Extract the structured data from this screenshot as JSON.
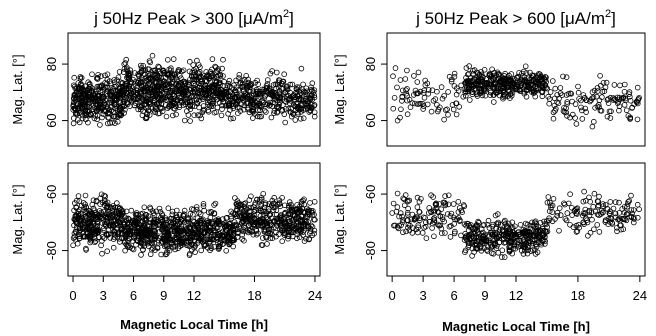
{
  "chart_data": [
    {
      "type": "scatter",
      "title_prefix": "j 50Hz Peak > 300 [",
      "title_unit_mu": "μ",
      "title_unit_rest": "A/m",
      "title_exp": "2",
      "title_suffix": "]",
      "xlabel": "Magnetic Local Time [h]",
      "xlim": [
        -0.5,
        24.5
      ],
      "xticks": [
        0,
        3,
        6,
        9,
        12,
        18,
        24
      ],
      "xtick_labels": [
        "0",
        "3",
        "6",
        "9",
        "12",
        "18",
        "24"
      ],
      "panels": [
        {
          "ylabel": "Mag. Lat. [°]",
          "ylim": [
            51,
            91
          ],
          "yticks": [
            60,
            80
          ],
          "ytick_labels": [
            "60",
            "80"
          ],
          "density": [
            {
              "x": [
                0,
                5
              ],
              "y": [
                56,
                79
              ],
              "w": 1.0
            },
            {
              "x": [
                5,
                15
              ],
              "y": [
                58,
                84
              ],
              "w": 2.2
            },
            {
              "x": [
                15,
                24
              ],
              "y": [
                57,
                79
              ],
              "w": 1.2
            }
          ],
          "n_points": 1400
        },
        {
          "ylabel": "Mag. Lat. [°]",
          "ylim": [
            -89,
            -49
          ],
          "yticks": [
            -80,
            -60
          ],
          "ytick_labels": [
            "-80",
            "-60"
          ],
          "density": [
            {
              "x": [
                0,
                5
              ],
              "y": [
                -82,
                -58
              ],
              "w": 1.0
            },
            {
              "x": [
                5,
                16
              ],
              "y": [
                -84,
                -62
              ],
              "w": 2.2
            },
            {
              "x": [
                16,
                24
              ],
              "y": [
                -80,
                -58
              ],
              "w": 1.3
            }
          ],
          "n_points": 1400
        }
      ]
    },
    {
      "type": "scatter",
      "title_prefix": "j 50Hz Peak > 600 [",
      "title_unit_mu": "μ",
      "title_unit_rest": "A/m",
      "title_exp": "2",
      "title_suffix": "]",
      "xlabel": "Magnetic Local Time [h]",
      "xlim": [
        -0.5,
        24.5
      ],
      "xticks": [
        0,
        3,
        6,
        9,
        12,
        18,
        24
      ],
      "xtick_labels": [
        "0",
        "3",
        "6",
        "9",
        "12",
        "18",
        "24"
      ],
      "panels": [
        {
          "ylabel": "Mag. Lat. [°]",
          "ylim": [
            51,
            91
          ],
          "yticks": [
            60,
            80
          ],
          "ytick_labels": [
            "60",
            "80"
          ],
          "density": [
            {
              "x": [
                0,
                7
              ],
              "y": [
                55,
                82
              ],
              "w": 0.5
            },
            {
              "x": [
                7,
                15
              ],
              "y": [
                66,
                80
              ],
              "w": 2.2
            },
            {
              "x": [
                15,
                24
              ],
              "y": [
                56,
                78
              ],
              "w": 0.7
            }
          ],
          "n_points": 560
        },
        {
          "ylabel": "Mag. Lat. [°]",
          "ylim": [
            -89,
            -49
          ],
          "yticks": [
            -80,
            -60
          ],
          "ytick_labels": [
            "-80",
            "-60"
          ],
          "density": [
            {
              "x": [
                0,
                7
              ],
              "y": [
                -80,
                -56
              ],
              "w": 0.7
            },
            {
              "x": [
                7,
                15
              ],
              "y": [
                -84,
                -66
              ],
              "w": 2.0
            },
            {
              "x": [
                15,
                24
              ],
              "y": [
                -78,
                -56
              ],
              "w": 0.9
            }
          ],
          "n_points": 620
        }
      ]
    }
  ]
}
